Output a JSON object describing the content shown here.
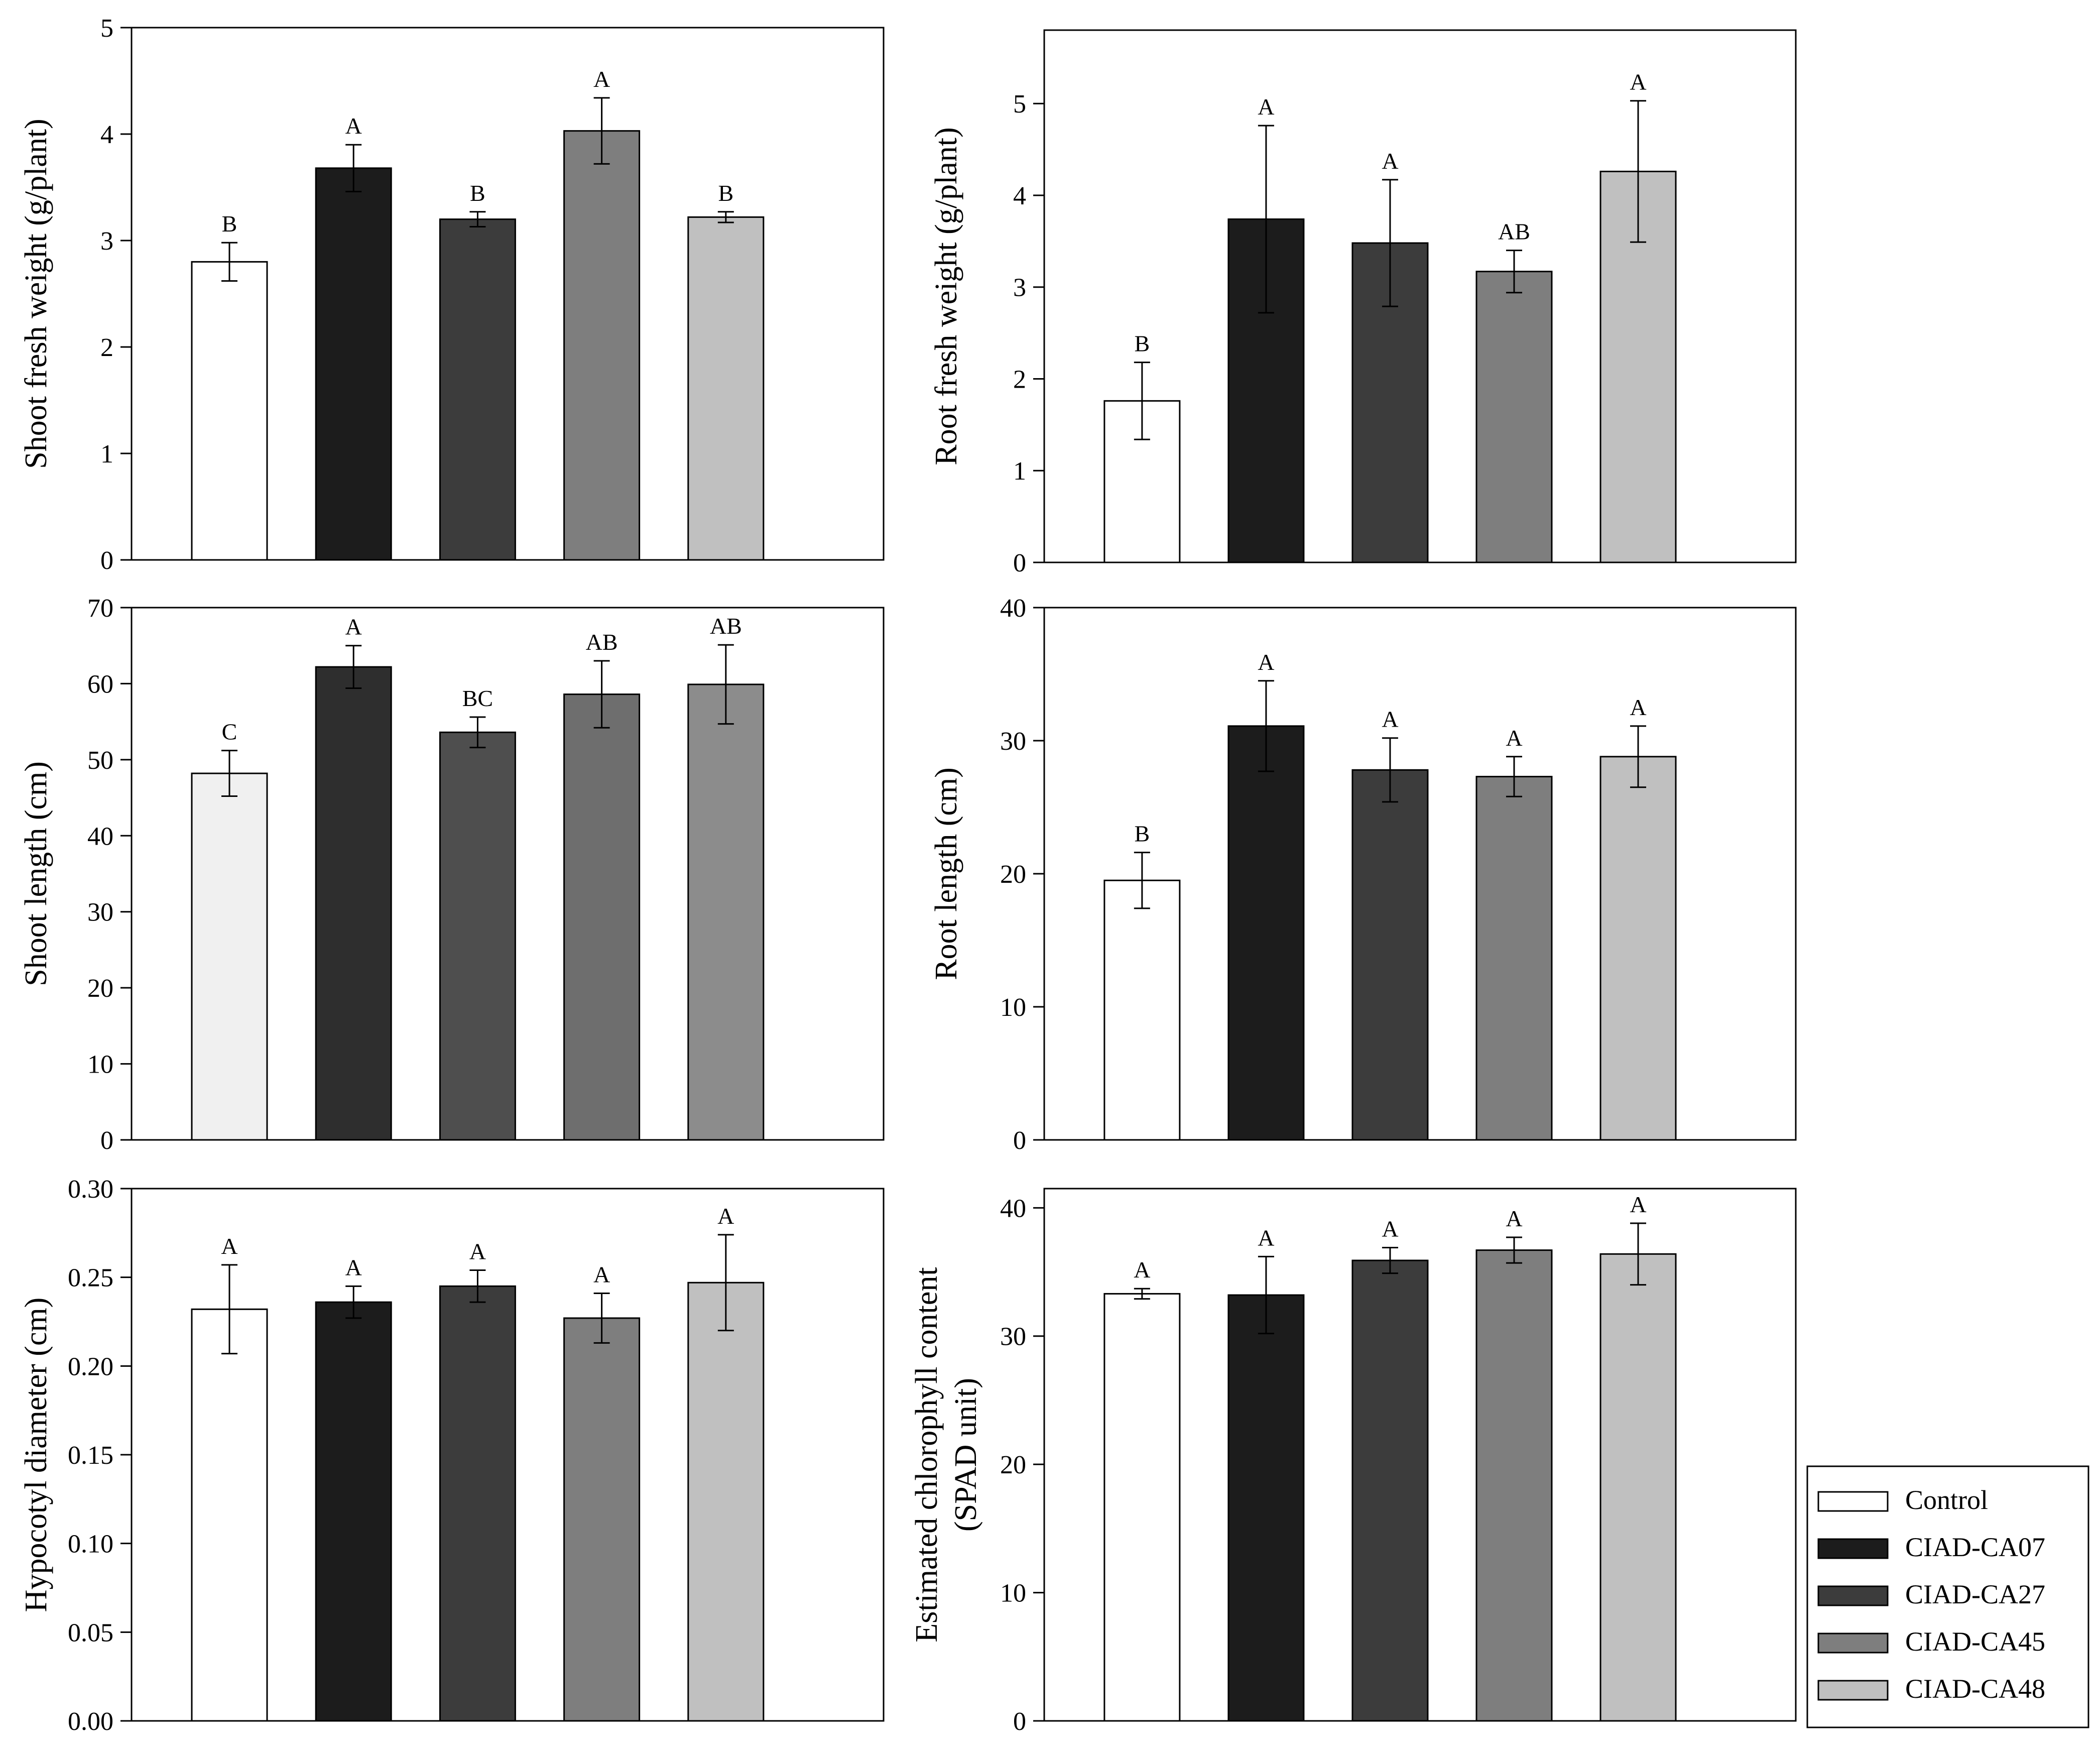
{
  "legend": {
    "items": [
      {
        "label": "Control",
        "color": "#ffffff"
      },
      {
        "label": "CIAD-CA07",
        "color": "#1c1c1c"
      },
      {
        "label": "CIAD-CA27",
        "color": "#3c3c3c"
      },
      {
        "label": "CIAD-CA45",
        "color": "#7e7e7e"
      },
      {
        "label": "CIAD-CA48",
        "color": "#c0c0c0"
      }
    ]
  },
  "chart_data": [
    {
      "type": "bar",
      "title": "",
      "ylabel": [
        "Shoot fresh weight (g/plant)"
      ],
      "categories": [
        "Control",
        "CIAD-CA07",
        "CIAD-CA27",
        "CIAD-CA45",
        "CIAD-CA48"
      ],
      "values": [
        2.8,
        3.68,
        3.2,
        4.03,
        3.22
      ],
      "errors": [
        0.18,
        0.22,
        0.07,
        0.31,
        0.05
      ],
      "letters": [
        "B",
        "A",
        "B",
        "A",
        "B"
      ],
      "colors": [
        "#ffffff",
        "#1c1c1c",
        "#3c3c3c",
        "#7e7e7e",
        "#c0c0c0"
      ],
      "ylim": [
        0,
        5
      ],
      "yticks": [
        0,
        1,
        2,
        3,
        4,
        5
      ],
      "ytick_labels": [
        "0",
        "1",
        "2",
        "3",
        "4",
        "5"
      ]
    },
    {
      "type": "bar",
      "title": "",
      "ylabel": [
        "Root fresh weight (g/plant)"
      ],
      "categories": [
        "Control",
        "CIAD-CA07",
        "CIAD-CA27",
        "CIAD-CA45",
        "CIAD-CA48"
      ],
      "values": [
        1.76,
        3.74,
        3.48,
        3.17,
        4.26
      ],
      "errors": [
        0.42,
        1.02,
        0.69,
        0.23,
        0.77
      ],
      "letters": [
        "B",
        "A",
        "A",
        "AB",
        "A"
      ],
      "colors": [
        "#ffffff",
        "#1c1c1c",
        "#3c3c3c",
        "#7e7e7e",
        "#c0c0c0"
      ],
      "ylim": [
        0,
        5.8
      ],
      "yticks": [
        0,
        1,
        2,
        3,
        4,
        5
      ],
      "ytick_labels": [
        "0",
        "1",
        "2",
        "3",
        "4",
        "5"
      ]
    },
    {
      "type": "bar",
      "title": "",
      "ylabel": [
        "Shoot length (cm)"
      ],
      "categories": [
        "Control",
        "CIAD-CA07",
        "CIAD-CA27",
        "CIAD-CA45",
        "CIAD-CA48"
      ],
      "values": [
        48.2,
        62.2,
        53.6,
        58.6,
        59.9
      ],
      "errors": [
        3.0,
        2.8,
        2.0,
        4.4,
        5.2
      ],
      "letters": [
        "C",
        "A",
        "BC",
        "AB",
        "AB"
      ],
      "colors": [
        "#f0f0f0",
        "#2e2e2e",
        "#4e4e4e",
        "#6e6e6e",
        "#8c8c8c"
      ],
      "ylim": [
        0,
        70
      ],
      "yticks": [
        0,
        10,
        20,
        30,
        40,
        50,
        60,
        70
      ],
      "ytick_labels": [
        "0",
        "10",
        "20",
        "30",
        "40",
        "50",
        "60",
        "70"
      ]
    },
    {
      "type": "bar",
      "title": "",
      "ylabel": [
        "Root length (cm)"
      ],
      "categories": [
        "Control",
        "CIAD-CA07",
        "CIAD-CA27",
        "CIAD-CA45",
        "CIAD-CA48"
      ],
      "values": [
        19.5,
        31.1,
        27.8,
        27.3,
        28.8
      ],
      "errors": [
        2.1,
        3.4,
        2.4,
        1.5,
        2.3
      ],
      "letters": [
        "B",
        "A",
        "A",
        "A",
        "A"
      ],
      "colors": [
        "#ffffff",
        "#1c1c1c",
        "#3c3c3c",
        "#7e7e7e",
        "#c0c0c0"
      ],
      "ylim": [
        0,
        40
      ],
      "yticks": [
        0,
        10,
        20,
        30,
        40
      ],
      "ytick_labels": [
        "0",
        "10",
        "20",
        "30",
        "40"
      ]
    },
    {
      "type": "bar",
      "title": "",
      "ylabel": [
        "Hypocotyl diameter (cm)"
      ],
      "categories": [
        "Control",
        "CIAD-CA07",
        "CIAD-CA27",
        "CIAD-CA45",
        "CIAD-CA48"
      ],
      "values": [
        0.232,
        0.236,
        0.245,
        0.227,
        0.247
      ],
      "errors": [
        0.025,
        0.009,
        0.009,
        0.014,
        0.027
      ],
      "letters": [
        "A",
        "A",
        "A",
        "A",
        "A"
      ],
      "colors": [
        "#ffffff",
        "#1c1c1c",
        "#3c3c3c",
        "#7e7e7e",
        "#c0c0c0"
      ],
      "ylim": [
        0,
        0.3
      ],
      "yticks": [
        0,
        0.05,
        0.1,
        0.15,
        0.2,
        0.25,
        0.3
      ],
      "ytick_labels": [
        "0.00",
        "0.05",
        "0.10",
        "0.15",
        "0.20",
        "0.25",
        "0.30"
      ]
    },
    {
      "type": "bar",
      "title": "",
      "ylabel": [
        "Estimated chlorophyll content",
        "(SPAD unit)"
      ],
      "categories": [
        "Control",
        "CIAD-CA07",
        "CIAD-CA27",
        "CIAD-CA45",
        "CIAD-CA48"
      ],
      "values": [
        33.3,
        33.2,
        35.9,
        36.7,
        36.4
      ],
      "errors": [
        0.4,
        3.0,
        1.0,
        1.0,
        2.4
      ],
      "letters": [
        "A",
        "A",
        "A",
        "A",
        "A"
      ],
      "colors": [
        "#ffffff",
        "#1c1c1c",
        "#3c3c3c",
        "#7e7e7e",
        "#c0c0c0"
      ],
      "ylim": [
        0,
        41.5
      ],
      "yticks": [
        0,
        10,
        20,
        30,
        40
      ],
      "ytick_labels": [
        "0",
        "10",
        "20",
        "30",
        "40"
      ]
    }
  ]
}
